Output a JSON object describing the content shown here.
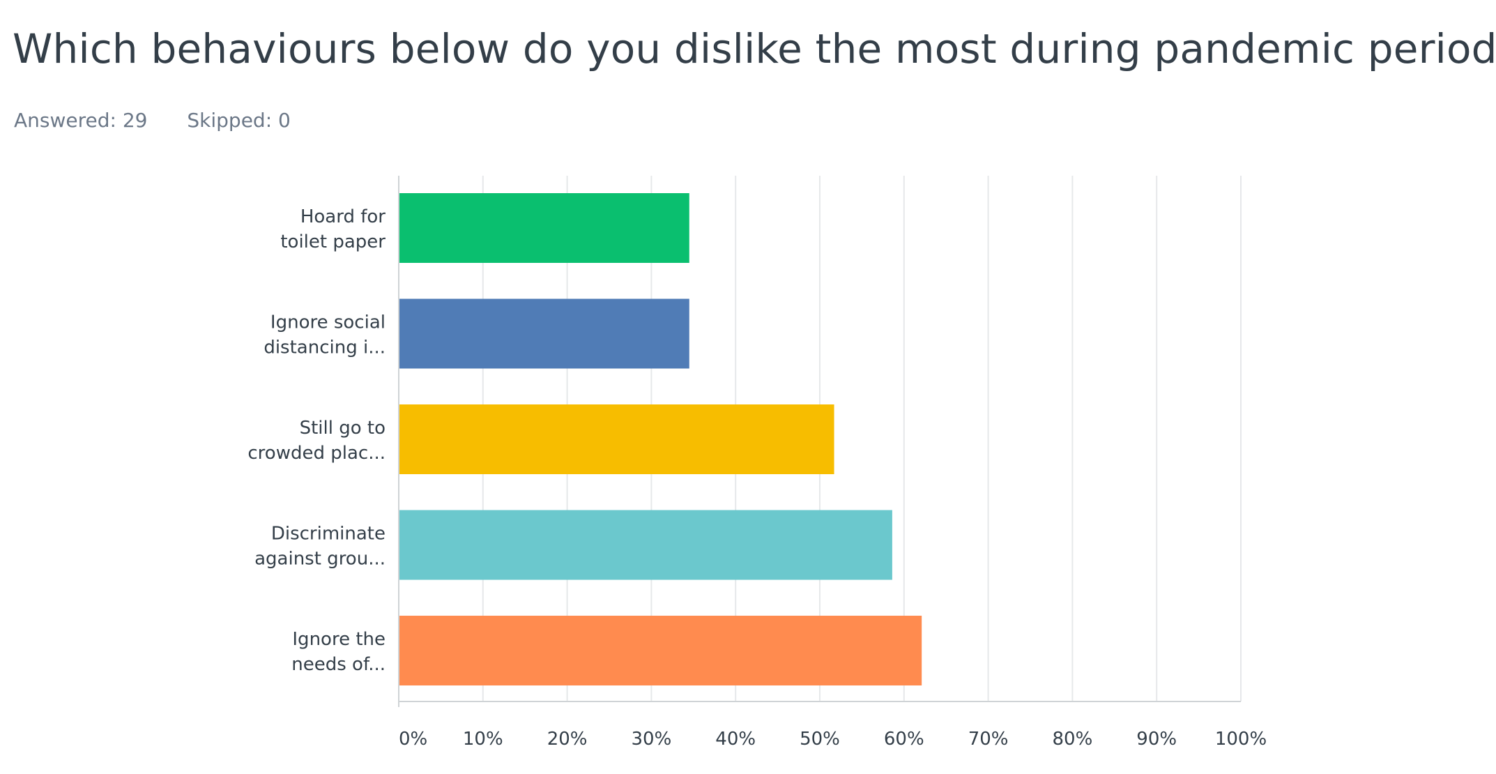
{
  "question": {
    "title": "Which behaviours below do you dislike the most during pandemic period?",
    "answered": "Answered: 29",
    "skipped": "Skipped: 0"
  },
  "chart_data": {
    "type": "bar",
    "orientation": "horizontal",
    "categories": [
      [
        "Hoard for",
        "toilet paper"
      ],
      [
        "Ignore social",
        "distancing i..."
      ],
      [
        "Still go to",
        "crowded plac..."
      ],
      [
        "Discriminate",
        "against grou..."
      ],
      [
        "Ignore the",
        "needs of..."
      ]
    ],
    "values": [
      34.5,
      34.5,
      51.7,
      58.6,
      62.1
    ],
    "colors": [
      "#0abf6f",
      "#507cb6",
      "#f7bd00",
      "#6bc8cd",
      "#ff8b4f"
    ],
    "x_ticks": [
      "0%",
      "10%",
      "20%",
      "30%",
      "40%",
      "50%",
      "60%",
      "70%",
      "80%",
      "90%",
      "100%"
    ],
    "xlim": [
      0,
      100
    ],
    "grid": true,
    "legend": "none"
  }
}
